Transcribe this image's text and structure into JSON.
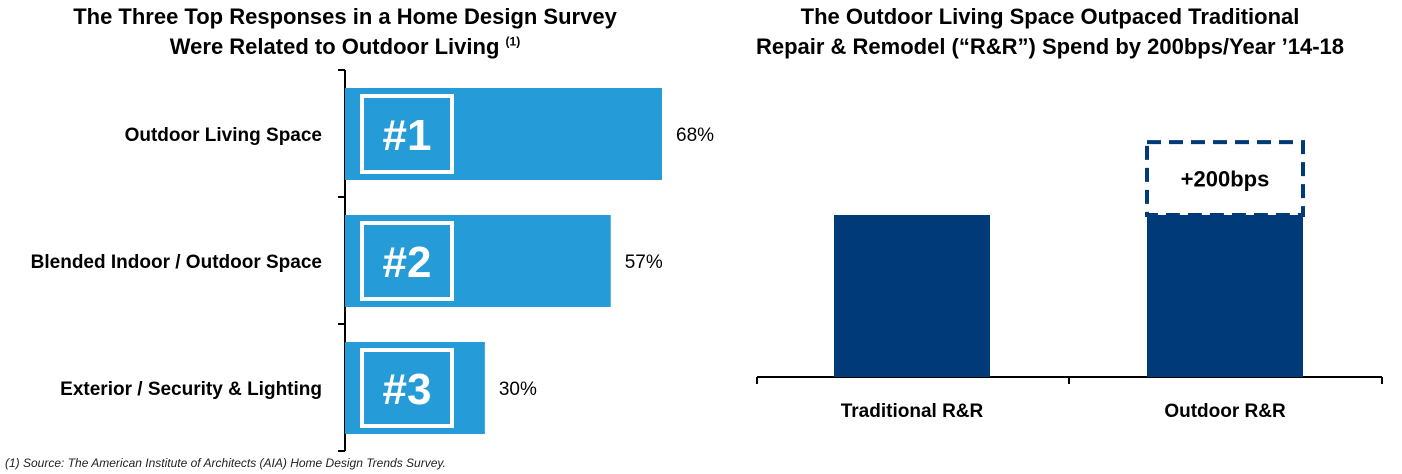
{
  "footnote": "(1) Source: The American Institute of Architects (AIA) Home Design Trends Survey.",
  "colors": {
    "light_bar": "#259BD7",
    "dark_bar": "#003A78",
    "axis": "#000000"
  },
  "chart_data": [
    {
      "type": "bar",
      "orientation": "horizontal",
      "title": "The Three Top Responses in a Home Design Survey Were Related to Outdoor Living",
      "title_line1": "The Three Top Responses in a Home Design Survey",
      "title_line2": "Were Related to Outdoor Living",
      "title_sup": "(1)",
      "categories": [
        "Outdoor Living Space",
        "Blended Indoor / Outdoor Space",
        "Exterior / Security & Lighting"
      ],
      "values": [
        68,
        57,
        30
      ],
      "value_labels": [
        "68%",
        "57%",
        "30%"
      ],
      "ranks": [
        "#1",
        "#2",
        "#3"
      ],
      "xlim": [
        0,
        100
      ],
      "xlabel": "",
      "ylabel": ""
    },
    {
      "type": "bar",
      "title": "The Outdoor Living Space Outpaced Traditional Repair & Remodel (“R&R”) Spend by 200bps/Year ’14-18",
      "title_line1": "The Outdoor Living Space Outpaced Traditional",
      "title_line2": "Repair & Remodel (“R&R”) Spend by 200bps/Year ’14-18",
      "categories": [
        "Traditional R&R",
        "Outdoor R&R"
      ],
      "values": [
        100,
        100
      ],
      "increment": {
        "label": "+200bps",
        "value": 45
      },
      "ylim": [
        0,
        160
      ],
      "xlabel": "",
      "ylabel": ""
    }
  ]
}
